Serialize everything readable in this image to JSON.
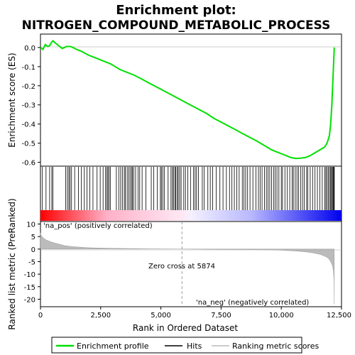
{
  "chart_data": [
    {
      "type": "line",
      "panel": "enrichment-profile",
      "title_line1": "Enrichment plot:",
      "title_line2": "NITROGEN_COMPOUND_METABOLIC_PROCESS",
      "ylabel": "Enrichment score (ES)",
      "xlim": [
        0,
        12500
      ],
      "ylim": [
        -0.62,
        0.07
      ],
      "yticks": [
        0.0,
        -0.1,
        -0.2,
        -0.3,
        -0.4,
        -0.5,
        -0.6
      ],
      "ytick_labels": [
        "0.0",
        "-0.1",
        "-0.2",
        "-0.3",
        "-0.4",
        "-0.5",
        "-0.6"
      ],
      "line_color": "#00e000",
      "series": [
        {
          "name": "Enrichment profile",
          "x": [
            0,
            100,
            200,
            300,
            380,
            450,
            520,
            600,
            700,
            800,
            900,
            1000,
            1080,
            1150,
            1250,
            1350,
            1500,
            1700,
            2000,
            2300,
            2500,
            2700,
            2900,
            3100,
            3300,
            3600,
            3900,
            4200,
            4500,
            4800,
            5100,
            5400,
            5700,
            6000,
            6300,
            6600,
            6900,
            7200,
            7500,
            7800,
            8100,
            8400,
            8700,
            9000,
            9200,
            9400,
            9600,
            9800,
            10000,
            10200,
            10400,
            10600,
            10800,
            11000,
            11200,
            11400,
            11600,
            11800,
            11900,
            12000,
            12050,
            12100,
            12150,
            12200
          ],
          "y": [
            0.0,
            -0.01,
            0.015,
            0.005,
            0.01,
            0.025,
            0.035,
            0.025,
            0.015,
            0.005,
            -0.005,
            0.0,
            0.005,
            0.005,
            0.005,
            0.0,
            -0.01,
            -0.02,
            -0.04,
            -0.055,
            -0.065,
            -0.075,
            -0.085,
            -0.1,
            -0.115,
            -0.13,
            -0.145,
            -0.165,
            -0.185,
            -0.205,
            -0.225,
            -0.245,
            -0.265,
            -0.285,
            -0.305,
            -0.325,
            -0.345,
            -0.37,
            -0.39,
            -0.41,
            -0.43,
            -0.45,
            -0.47,
            -0.49,
            -0.505,
            -0.52,
            -0.535,
            -0.545,
            -0.555,
            -0.565,
            -0.575,
            -0.58,
            -0.578,
            -0.575,
            -0.565,
            -0.55,
            -0.535,
            -0.52,
            -0.5,
            -0.46,
            -0.4,
            -0.3,
            -0.15,
            0.0
          ]
        }
      ]
    },
    {
      "type": "scatter",
      "panel": "hits",
      "legend_name": "Hits",
      "hit_ranks": [
        80,
        230,
        380,
        470,
        520,
        1050,
        1120,
        1180,
        1230,
        1290,
        1420,
        1580,
        1700,
        1820,
        1930,
        2050,
        2180,
        2350,
        2480,
        2600,
        2700,
        2760,
        2800,
        2850,
        2900,
        3150,
        3250,
        3330,
        3400,
        3480,
        3520,
        3600,
        3660,
        3720,
        3780,
        3820,
        3870,
        3950,
        4050,
        4120,
        4220,
        4380,
        4600,
        4700,
        4850,
        4980,
        5020,
        5080,
        5150,
        5300,
        5420,
        5480,
        5520,
        5580,
        5620,
        5680,
        5720,
        5780,
        5840,
        5950,
        6020,
        6120,
        6230,
        6350,
        6420,
        6480,
        6560,
        6720,
        6800,
        6950,
        7050,
        7150,
        7300,
        7450,
        7580,
        7720,
        7850,
        7950,
        8050,
        8150,
        8250,
        8380,
        8450,
        8520,
        8600,
        8700,
        8820,
        8950,
        9050,
        9120,
        9200,
        9300,
        9380,
        9450,
        9520,
        9600,
        9680,
        9750,
        9820,
        9900,
        10000,
        10050,
        10150,
        10250,
        10350,
        10450,
        10500,
        10580,
        10650,
        10720,
        10800,
        10880,
        10950,
        11050,
        11100,
        11200,
        11300,
        11400,
        11500,
        11600,
        11700,
        11800,
        11850,
        11900,
        11950,
        12000,
        12050,
        12080,
        12120,
        12150,
        12180,
        12200
      ]
    },
    {
      "type": "area",
      "panel": "ranked-metric",
      "xlabel": "Rank in Ordered Dataset",
      "ylabel": "Ranked list metric (PreRanked)",
      "xlim": [
        0,
        12500
      ],
      "ylim": [
        -23,
        11
      ],
      "xticks": [
        0,
        2500,
        5000,
        7500,
        10000,
        12500
      ],
      "xtick_labels": [
        "0",
        "2,500",
        "5,000",
        "7,500",
        "10,000",
        "12,500"
      ],
      "yticks": [
        10,
        5,
        0,
        -5,
        -10,
        -15,
        -20
      ],
      "ytick_labels": [
        "10",
        "5",
        "0",
        "-5",
        "-10",
        "-15",
        "-20"
      ],
      "series": [
        {
          "name": "Ranking metric scores",
          "x": [
            0,
            30,
            80,
            150,
            250,
            400,
            600,
            800,
            1000,
            1300,
            1600,
            2000,
            2500,
            3000,
            3500,
            4000,
            4500,
            5000,
            5500,
            5874,
            6500,
            7000,
            7500,
            8000,
            8500,
            9000,
            9500,
            10000,
            10500,
            11000,
            11300,
            11600,
            11800,
            11950,
            12050,
            12120,
            12160,
            12190,
            12200
          ],
          "y": [
            6.5,
            5.5,
            4.8,
            4.2,
            3.6,
            3.0,
            2.4,
            1.9,
            1.4,
            1.0,
            0.8,
            0.55,
            0.4,
            0.3,
            0.22,
            0.15,
            0.1,
            0.06,
            0.03,
            0.0,
            -0.05,
            -0.08,
            -0.12,
            -0.15,
            -0.2,
            -0.25,
            -0.32,
            -0.45,
            -0.7,
            -1.1,
            -1.5,
            -2.1,
            -2.8,
            -3.6,
            -5.0,
            -6.5,
            -8.5,
            -12,
            -22
          ]
        }
      ],
      "zero_cross_label": "Zero cross at 5874",
      "zero_cross_rank": 5874,
      "pos_label": "'na_pos' (positively correlated)",
      "neg_label": "'na_neg' (negatively correlated)",
      "pos_color": "#cc0000",
      "neg_color": "#0000cc"
    }
  ],
  "legend": {
    "items": [
      {
        "label": "Enrichment profile",
        "color": "#00e000"
      },
      {
        "label": "Hits",
        "color": "#000000"
      },
      {
        "label": "Ranking metric scores",
        "color": "#bbbbbb"
      }
    ]
  }
}
